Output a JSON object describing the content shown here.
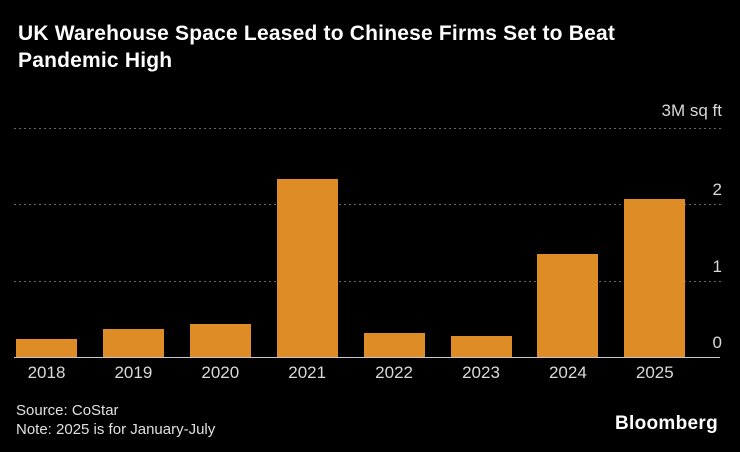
{
  "title": "UK Warehouse Space Leased to Chinese Firms Set to Beat Pandemic High",
  "footer": {
    "source": "Source: CoStar",
    "note": "Note: 2025 is for January-July",
    "branding": "Bloomberg"
  },
  "colors": {
    "background": "#000000",
    "bar": "#DD8C26",
    "title_text": "#FFFFFF",
    "axis_text": "#D9D9D9",
    "footer_text": "#E0E0E0",
    "gridline": "#666666",
    "baseline": "#C8C8C8"
  },
  "chart_data": {
    "type": "bar",
    "categories": [
      "2018",
      "2019",
      "2020",
      "2021",
      "2022",
      "2023",
      "2024",
      "2025"
    ],
    "values": [
      0.23,
      0.37,
      0.43,
      2.33,
      0.31,
      0.28,
      1.35,
      2.07
    ],
    "title": "UK Warehouse Space Leased to Chinese Firms Set to Beat Pandemic High",
    "xlabel": "",
    "ylabel": "M sq ft",
    "ylim": [
      0,
      3
    ],
    "yticks": [
      0,
      1,
      2,
      3
    ],
    "ytick_labels": [
      "0",
      "1",
      "2",
      "3M sq ft"
    ],
    "unit_label": "3M sq ft",
    "legend": "none",
    "grid": "horizontal-dotted",
    "axis_side": "right",
    "bar_color": "#DD8C26"
  }
}
